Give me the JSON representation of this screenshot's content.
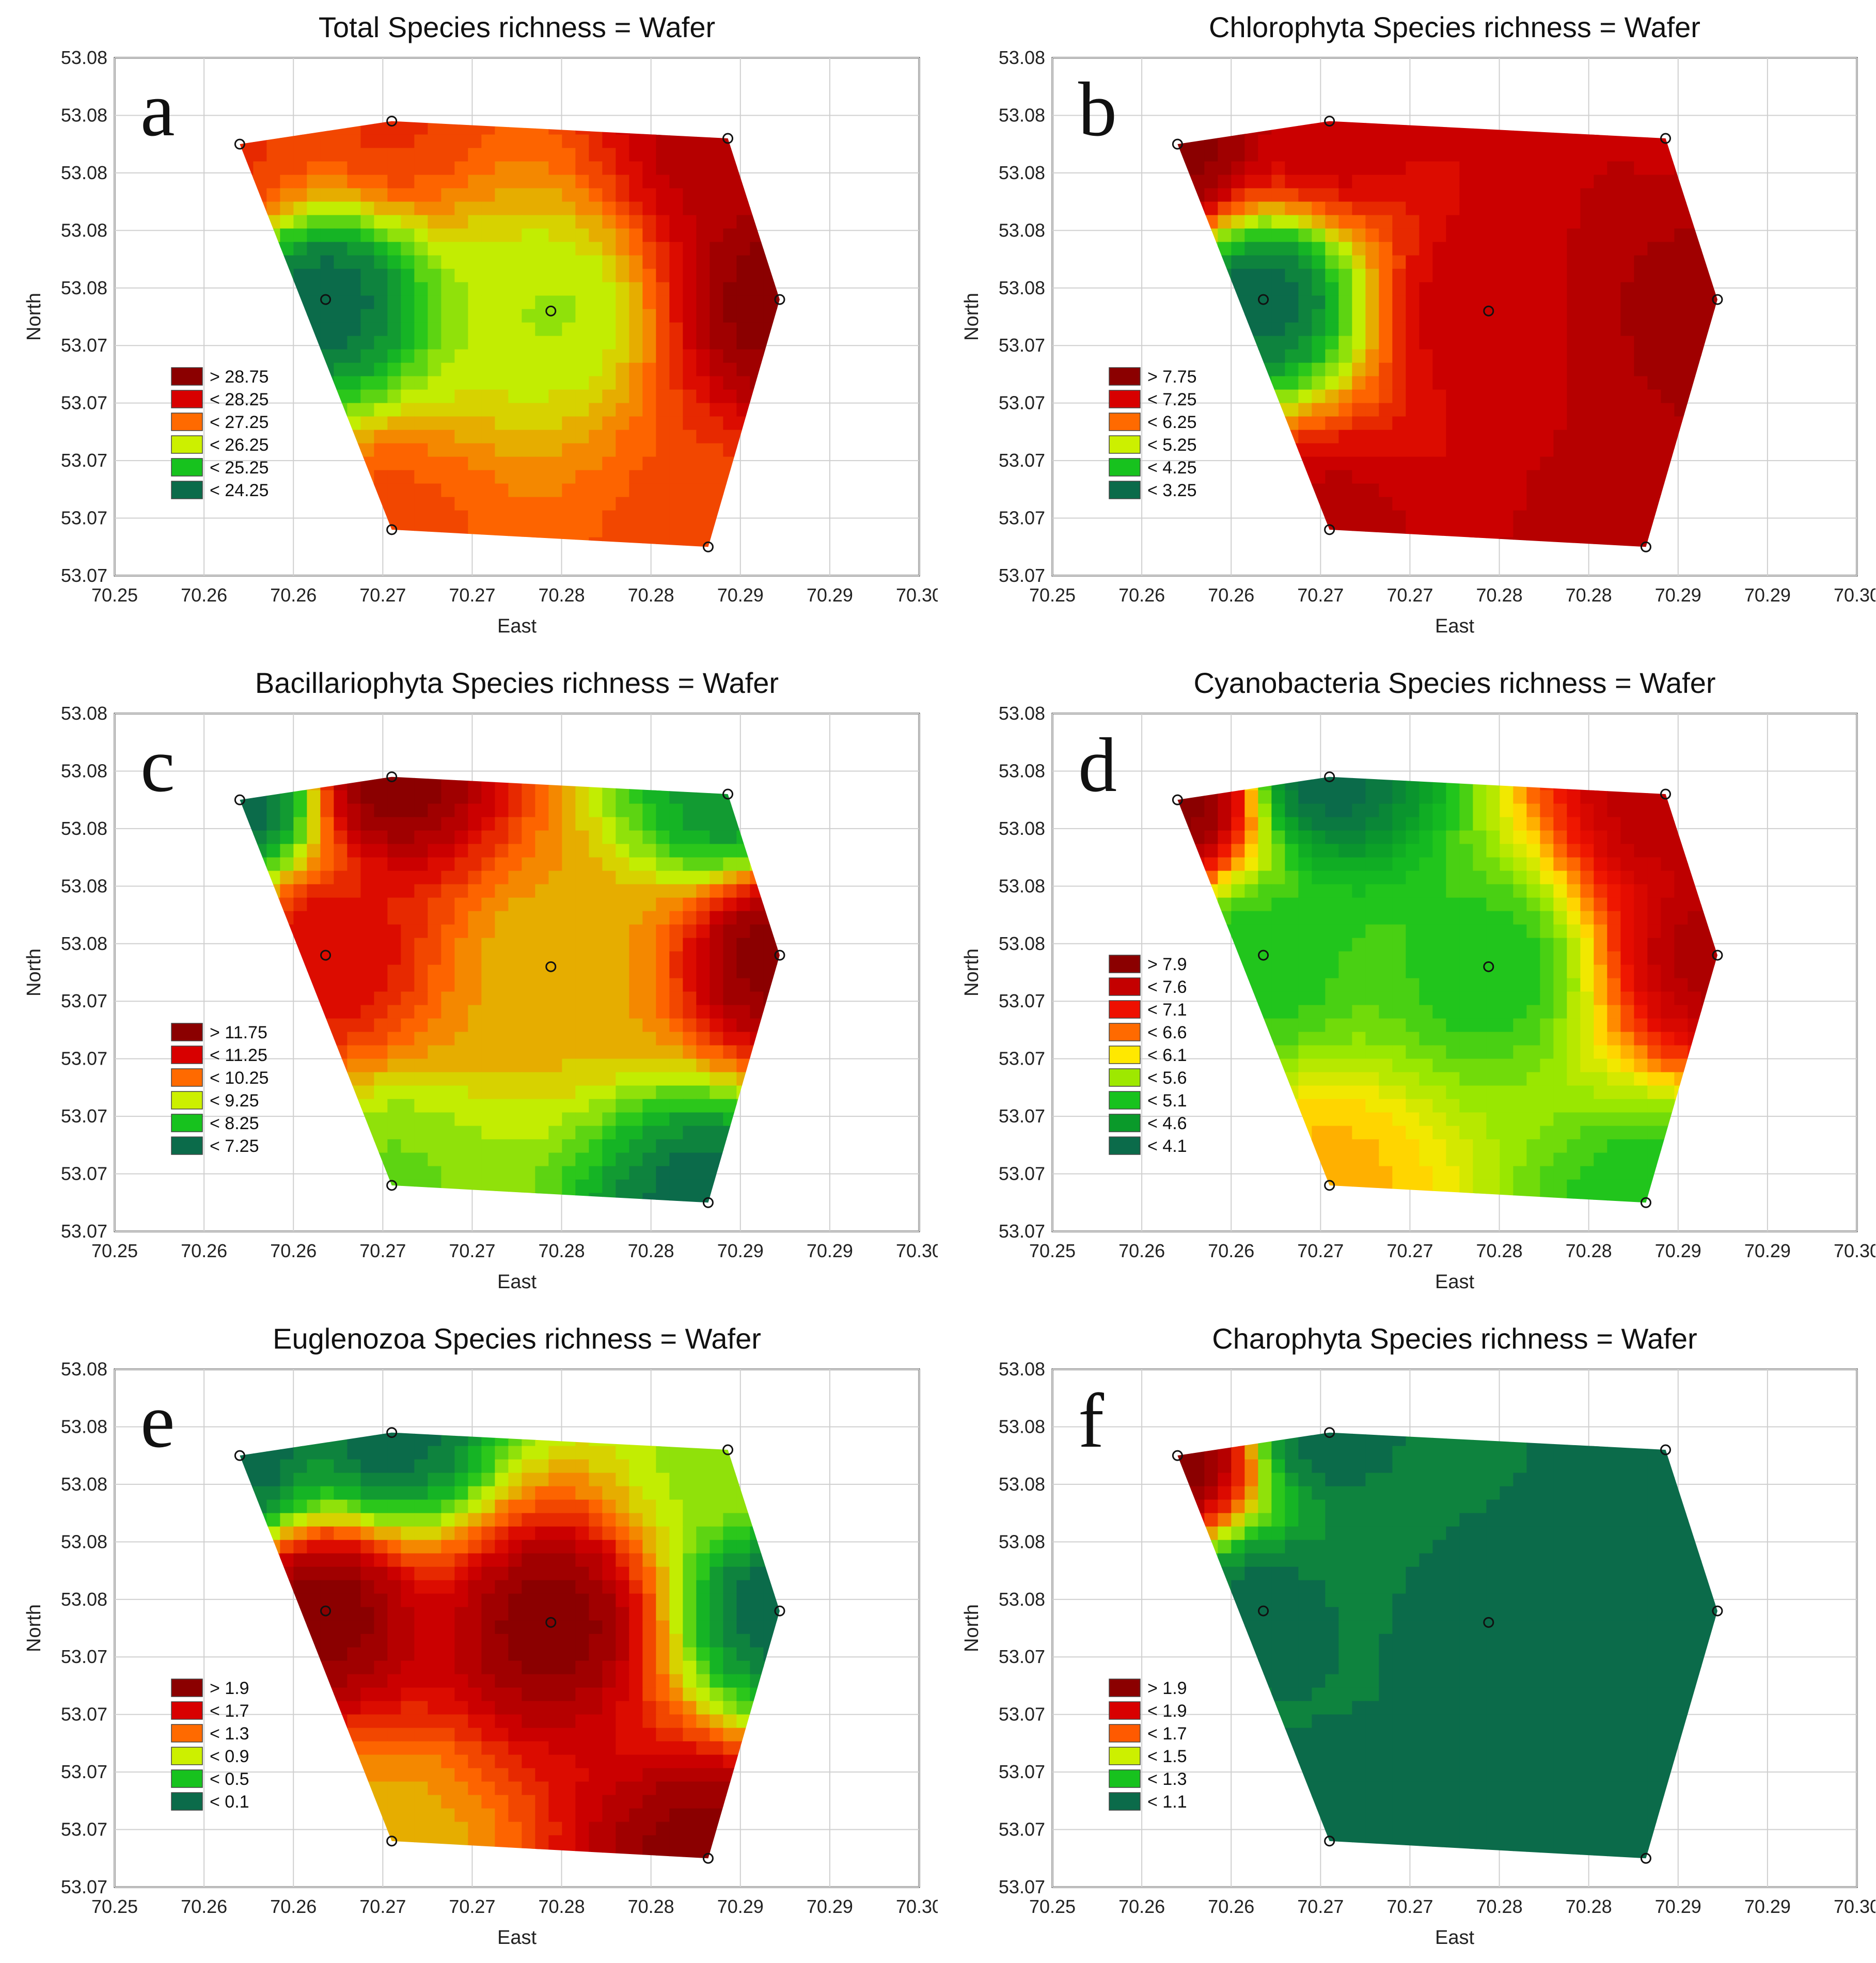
{
  "palette": {
    "dark_green": "#0b6b4a",
    "green": "#17c21e",
    "lime": "#ccf000",
    "yellow": "#ffe800",
    "orange": "#ffa000",
    "orange_red": "#ff5a00",
    "red": "#ee1000",
    "dark_red": "#8b0000"
  },
  "chart_data": [
    {
      "type": "contour",
      "panel_letter": "a",
      "title": "Total Species richness = Wafer",
      "xlabel": "East",
      "ylabel": "North",
      "x_ticks": [
        "70.25",
        "70.26",
        "70.26",
        "70.27",
        "70.27",
        "70.28",
        "70.28",
        "70.29",
        "70.29",
        "70.30"
      ],
      "y_ticks": [
        "53.08",
        "53.08",
        "53.08",
        "53.08",
        "53.08",
        "53.07",
        "53.07",
        "53.07",
        "53.07",
        "53.07"
      ],
      "legend": [
        "> 28.75",
        "< 28.25",
        "< 27.25",
        "< 26.25",
        "< 25.25",
        "< 24.25"
      ],
      "legend_colors": [
        "#8b0000",
        "#d80000",
        "#ff6a00",
        "#ccf000",
        "#17c21e",
        "#0b6b4a"
      ],
      "points": [
        {
          "x": 70.262,
          "y": 53.0795,
          "v": 27.5
        },
        {
          "x": 70.2705,
          "y": 53.0799,
          "v": 27.5
        },
        {
          "x": 70.2893,
          "y": 53.0796,
          "v": 28.5
        },
        {
          "x": 70.2922,
          "y": 53.0768,
          "v": 29.0
        },
        {
          "x": 70.2668,
          "y": 53.0768,
          "v": 24.0
        },
        {
          "x": 70.2794,
          "y": 53.0766,
          "v": 25.8
        },
        {
          "x": 70.2705,
          "y": 53.0728,
          "v": 27.3
        },
        {
          "x": 70.2882,
          "y": 53.0725,
          "v": 27.3
        }
      ]
    },
    {
      "type": "contour",
      "panel_letter": "b",
      "title": "Chlorophyta Species richness = Wafer",
      "xlabel": "East",
      "ylabel": "North",
      "x_ticks": [
        "70.25",
        "70.26",
        "70.26",
        "70.27",
        "70.27",
        "70.28",
        "70.28",
        "70.29",
        "70.29",
        "70.30"
      ],
      "y_ticks": [
        "53.08",
        "53.08",
        "53.08",
        "53.08",
        "53.08",
        "53.07",
        "53.07",
        "53.07",
        "53.07",
        "53.07"
      ],
      "legend": [
        "> 7.75",
        "< 7.25",
        "< 6.25",
        "< 5.25",
        "< 4.25",
        "< 3.25"
      ],
      "legend_colors": [
        "#8b0000",
        "#d80000",
        "#ff6a00",
        "#ccf000",
        "#17c21e",
        "#0b6b4a"
      ],
      "points": [
        {
          "x": 70.262,
          "y": 53.0795,
          "v": 8.0
        },
        {
          "x": 70.2705,
          "y": 53.0799,
          "v": 7.3
        },
        {
          "x": 70.2893,
          "y": 53.0796,
          "v": 7.3
        },
        {
          "x": 70.2922,
          "y": 53.0768,
          "v": 7.8
        },
        {
          "x": 70.2668,
          "y": 53.0768,
          "v": 3.0
        },
        {
          "x": 70.2794,
          "y": 53.0766,
          "v": 7.3
        },
        {
          "x": 70.2705,
          "y": 53.0728,
          "v": 7.4
        },
        {
          "x": 70.2882,
          "y": 53.0725,
          "v": 7.5
        }
      ]
    },
    {
      "type": "contour",
      "panel_letter": "c",
      "title": "Bacillariophyta Species richness = Wafer",
      "xlabel": "East",
      "ylabel": "North",
      "x_ticks": [
        "70.25",
        "70.26",
        "70.26",
        "70.27",
        "70.27",
        "70.28",
        "70.28",
        "70.29",
        "70.29",
        "70.30"
      ],
      "y_ticks": [
        "53.08",
        "53.08",
        "53.08",
        "53.08",
        "53.08",
        "53.07",
        "53.07",
        "53.07",
        "53.07",
        "53.07"
      ],
      "legend": [
        "> 11.75",
        "< 11.25",
        "< 10.25",
        "< 9.25",
        "< 8.25",
        "< 7.25"
      ],
      "legend_colors": [
        "#8b0000",
        "#d80000",
        "#ff6a00",
        "#ccf000",
        "#17c21e",
        "#0b6b4a"
      ],
      "points": [
        {
          "x": 70.262,
          "y": 53.0795,
          "v": 7.0
        },
        {
          "x": 70.2705,
          "y": 53.0799,
          "v": 12.0
        },
        {
          "x": 70.2893,
          "y": 53.0796,
          "v": 7.5
        },
        {
          "x": 70.2922,
          "y": 53.0768,
          "v": 12.0
        },
        {
          "x": 70.2668,
          "y": 53.0768,
          "v": 11.0
        },
        {
          "x": 70.2794,
          "y": 53.0766,
          "v": 9.5
        },
        {
          "x": 70.2705,
          "y": 53.0728,
          "v": 8.5
        },
        {
          "x": 70.2882,
          "y": 53.0725,
          "v": 7.0
        }
      ]
    },
    {
      "type": "contour",
      "panel_letter": "d",
      "title": "Cyanobacteria Species richness = Wafer",
      "xlabel": "East",
      "ylabel": "North",
      "x_ticks": [
        "70.25",
        "70.26",
        "70.26",
        "70.27",
        "70.27",
        "70.28",
        "70.28",
        "70.29",
        "70.29",
        "70.30"
      ],
      "y_ticks": [
        "53.08",
        "53.08",
        "53.08",
        "53.08",
        "53.08",
        "53.07",
        "53.07",
        "53.07",
        "53.07",
        "53.07"
      ],
      "legend": [
        "> 7.9",
        "< 7.6",
        "< 7.1",
        "< 6.6",
        "< 6.1",
        "< 5.6",
        "< 5.1",
        "< 4.6",
        "< 4.1"
      ],
      "legend_colors": [
        "#8b0000",
        "#c40000",
        "#ee1000",
        "#ff6a00",
        "#ffe800",
        "#9ee800",
        "#17c21e",
        "#0a9a2a",
        "#0b6b4a"
      ],
      "points": [
        {
          "x": 70.262,
          "y": 53.0795,
          "v": 8.0
        },
        {
          "x": 70.2705,
          "y": 53.0799,
          "v": 4.0
        },
        {
          "x": 70.2893,
          "y": 53.0796,
          "v": 7.6
        },
        {
          "x": 70.2922,
          "y": 53.0768,
          "v": 7.7
        },
        {
          "x": 70.2668,
          "y": 53.0768,
          "v": 5.0
        },
        {
          "x": 70.2794,
          "y": 53.0766,
          "v": 5.0
        },
        {
          "x": 70.2705,
          "y": 53.0728,
          "v": 6.2
        },
        {
          "x": 70.2882,
          "y": 53.0725,
          "v": 5.0
        }
      ]
    },
    {
      "type": "contour",
      "panel_letter": "e",
      "title": "Euglenozoa Species richness = Wafer",
      "xlabel": "East",
      "ylabel": "North",
      "x_ticks": [
        "70.25",
        "70.26",
        "70.26",
        "70.27",
        "70.27",
        "70.28",
        "70.28",
        "70.29",
        "70.29",
        "70.30"
      ],
      "y_ticks": [
        "53.08",
        "53.08",
        "53.08",
        "53.08",
        "53.08",
        "53.07",
        "53.07",
        "53.07",
        "53.07",
        "53.07"
      ],
      "legend": [
        "> 1.9",
        "< 1.7",
        "< 1.3",
        "< 0.9",
        "< 0.5",
        "< 0.1"
      ],
      "legend_colors": [
        "#8b0000",
        "#d80000",
        "#ff6a00",
        "#ccf000",
        "#17c21e",
        "#0b6b4a"
      ],
      "points": [
        {
          "x": 70.262,
          "y": 53.0795,
          "v": 0.0
        },
        {
          "x": 70.2705,
          "y": 53.0799,
          "v": 0.0
        },
        {
          "x": 70.2893,
          "y": 53.0796,
          "v": 0.7
        },
        {
          "x": 70.2922,
          "y": 53.0768,
          "v": 0.0
        },
        {
          "x": 70.2668,
          "y": 53.0768,
          "v": 2.0
        },
        {
          "x": 70.2794,
          "y": 53.0766,
          "v": 2.0
        },
        {
          "x": 70.2705,
          "y": 53.0728,
          "v": 1.0
        },
        {
          "x": 70.2882,
          "y": 53.0725,
          "v": 2.0
        }
      ]
    },
    {
      "type": "contour",
      "panel_letter": "f",
      "title": "Charophyta Species richness = Wafer",
      "xlabel": "East",
      "ylabel": "North",
      "x_ticks": [
        "70.25",
        "70.26",
        "70.26",
        "70.27",
        "70.27",
        "70.28",
        "70.28",
        "70.29",
        "70.29",
        "70.30"
      ],
      "y_ticks": [
        "53.08",
        "53.08",
        "53.08",
        "53.08",
        "53.08",
        "53.07",
        "53.07",
        "53.07",
        "53.07",
        "53.07"
      ],
      "legend": [
        "> 1.9",
        "< 1.9",
        "< 1.7",
        "< 1.5",
        "< 1.3",
        "< 1.1"
      ],
      "legend_colors": [
        "#8b0000",
        "#d80000",
        "#ff5a00",
        "#ccf000",
        "#17c21e",
        "#0b6b4a"
      ],
      "points": [
        {
          "x": 70.262,
          "y": 53.0795,
          "v": 2.0
        },
        {
          "x": 70.2705,
          "y": 53.0799,
          "v": 1.0
        },
        {
          "x": 70.2893,
          "y": 53.0796,
          "v": 1.0
        },
        {
          "x": 70.2922,
          "y": 53.0768,
          "v": 1.0
        },
        {
          "x": 70.2668,
          "y": 53.0768,
          "v": 1.0
        },
        {
          "x": 70.2794,
          "y": 53.0766,
          "v": 1.0
        },
        {
          "x": 70.2705,
          "y": 53.0728,
          "v": 1.0
        },
        {
          "x": 70.2882,
          "y": 53.0725,
          "v": 1.0
        }
      ]
    }
  ]
}
